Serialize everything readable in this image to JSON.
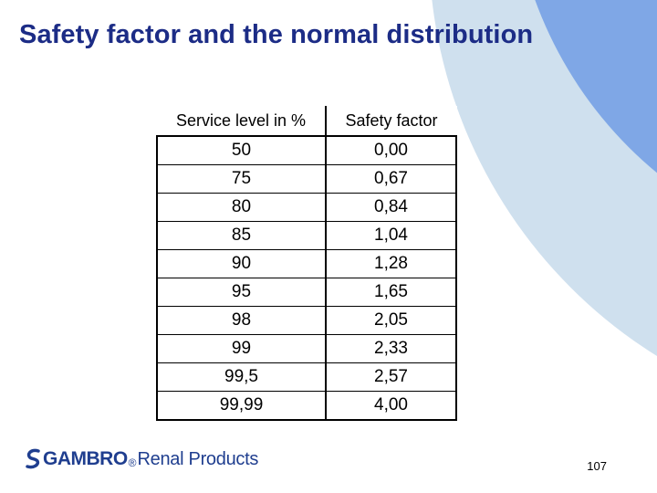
{
  "slide": {
    "title": "Safety factor and the normal distribution",
    "page_number": "107"
  },
  "table": {
    "headers": [
      "Service level in %",
      "Safety factor"
    ],
    "rows": [
      [
        "50",
        "0,00"
      ],
      [
        "75",
        "0,67"
      ],
      [
        "80",
        "0,84"
      ],
      [
        "85",
        "1,04"
      ],
      [
        "90",
        "1,28"
      ],
      [
        "95",
        "1,65"
      ],
      [
        "98",
        "2,05"
      ],
      [
        "99",
        "2,33"
      ],
      [
        "99,5",
        "2,57"
      ],
      [
        "99,99",
        "4,00"
      ]
    ]
  },
  "logo": {
    "brand": "GAMBRO",
    "registered": "®",
    "sub": "Renal Products"
  },
  "colors": {
    "title": "#1c2c86",
    "arc_dark": "#3d3fb5",
    "arc_mid": "#7fa7e6",
    "arc_light": "#cfe0ee",
    "logo": "#1f3e8f"
  }
}
